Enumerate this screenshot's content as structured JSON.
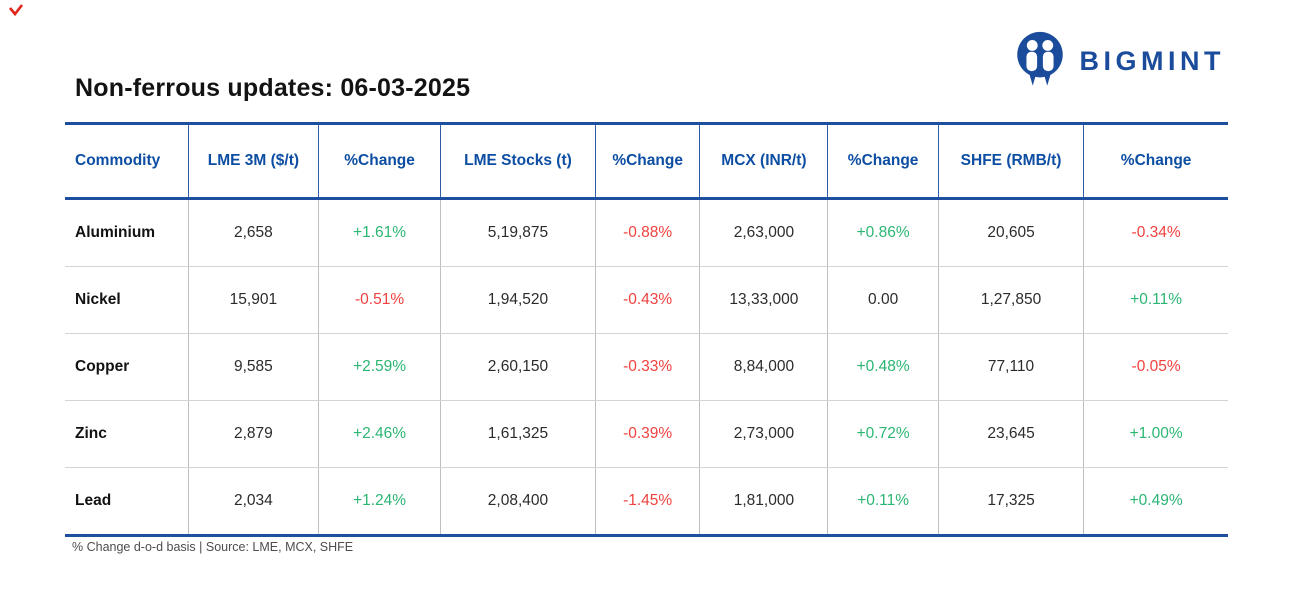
{
  "page": {
    "title": "Non-ferrous updates: 06-03-2025",
    "footnote": "% Change d-o-d basis | Source: LME, MCX, SHFE"
  },
  "brand": {
    "name": "BIGMINT",
    "logo_icon": "bigmint-circle-m-icon"
  },
  "colors": {
    "brand_blue": "#1b4b9b",
    "header_blue": "#0d4ea3",
    "border_blue": "#1d4f9e",
    "positive_green": "#2bb673",
    "negative_red": "#f0413e",
    "corner_mark_red": "#e1251b"
  },
  "chart_data": {
    "type": "table",
    "title": "Non-ferrous updates: 06-03-2025",
    "columns": [
      "Commodity",
      "LME 3M ($/t)",
      "%Change",
      "LME Stocks (t)",
      "%Change",
      "MCX (INR/t)",
      "%Change",
      "SHFE (RMB/t)",
      "%Change"
    ],
    "rows": [
      [
        "Aluminium",
        "2,658",
        "+1.61%",
        "5,19,875",
        "-0.88%",
        "2,63,000",
        "+0.86%",
        "20,605",
        "-0.34%"
      ],
      [
        "Nickel",
        "15,901",
        "-0.51%",
        "1,94,520",
        "-0.43%",
        "13,33,000",
        "0.00",
        "1,27,850",
        "+0.11%"
      ],
      [
        "Copper",
        "9,585",
        "+2.59%",
        "2,60,150",
        "-0.33%",
        "8,84,000",
        "+0.48%",
        "77,110",
        "-0.05%"
      ],
      [
        "Zinc",
        "2,879",
        "+2.46%",
        "1,61,325",
        "-0.39%",
        "2,73,000",
        "+0.72%",
        "23,645",
        "+1.00%"
      ],
      [
        "Lead",
        "2,034",
        "+1.24%",
        "2,08,400",
        "-1.45%",
        "1,81,000",
        "+0.11%",
        "17,325",
        "+0.49%"
      ]
    ],
    "footnote": "% Change d-o-d basis | Source: LME, MCX, SHFE"
  }
}
